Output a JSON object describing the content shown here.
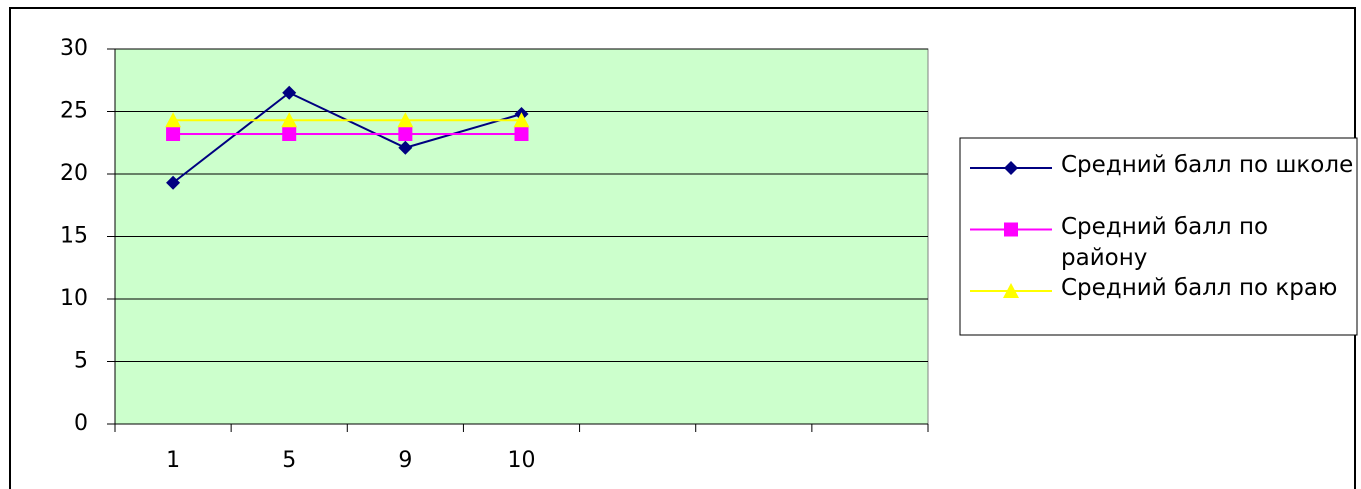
{
  "chart_data": {
    "type": "line",
    "categories": [
      "1",
      "5",
      "9",
      "10",
      null,
      null,
      null
    ],
    "series": [
      {
        "name": "Средний балл по школе",
        "color": "#000080",
        "marker": "diamond",
        "values": [
          19.3,
          26.5,
          22.1,
          24.8,
          null,
          null,
          null
        ]
      },
      {
        "name": "Средний балл по району",
        "color": "#ff00ff",
        "marker": "square",
        "values": [
          23.2,
          23.2,
          23.2,
          23.2,
          null,
          null,
          null
        ]
      },
      {
        "name": "Средний балл по краю",
        "color": "#ffff00",
        "marker": "triangle",
        "values": [
          24.3,
          24.3,
          24.3,
          24.3,
          null,
          null,
          null
        ]
      }
    ],
    "ylim": [
      0,
      30
    ],
    "yticks": [
      0,
      5,
      10,
      15,
      20,
      25,
      30
    ],
    "grid": true,
    "legend": "right"
  }
}
